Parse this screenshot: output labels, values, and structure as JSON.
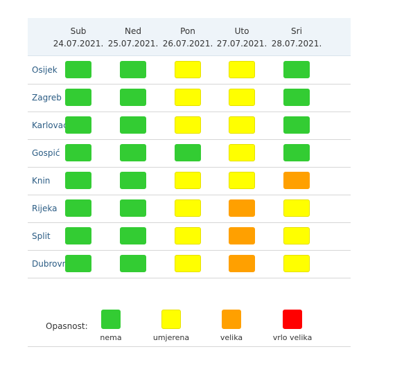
{
  "colors": {
    "nema": "#33cc33",
    "umjerena": "#ffff00",
    "velika": "#ffa000",
    "vrlo_velika": "#ff0000"
  },
  "days": [
    {
      "name": "Sub",
      "date": "24.07.2021."
    },
    {
      "name": "Ned",
      "date": "25.07.2021."
    },
    {
      "name": "Pon",
      "date": "26.07.2021."
    },
    {
      "name": "Uto",
      "date": "27.07.2021."
    },
    {
      "name": "Sri",
      "date": "28.07.2021."
    }
  ],
  "cities": [
    {
      "name": "Osijek",
      "levels": [
        "nema",
        "nema",
        "umjerena",
        "umjerena",
        "nema"
      ]
    },
    {
      "name": "Zagreb",
      "levels": [
        "nema",
        "nema",
        "umjerena",
        "umjerena",
        "nema"
      ]
    },
    {
      "name": "Karlovac",
      "levels": [
        "nema",
        "nema",
        "umjerena",
        "umjerena",
        "nema"
      ]
    },
    {
      "name": "Gospić",
      "levels": [
        "nema",
        "nema",
        "nema",
        "umjerena",
        "nema"
      ]
    },
    {
      "name": "Knin",
      "levels": [
        "nema",
        "nema",
        "umjerena",
        "umjerena",
        "velika"
      ]
    },
    {
      "name": "Rijeka",
      "levels": [
        "nema",
        "nema",
        "umjerena",
        "velika",
        "umjerena"
      ]
    },
    {
      "name": "Split",
      "levels": [
        "nema",
        "nema",
        "umjerena",
        "velika",
        "umjerena"
      ]
    },
    {
      "name": "Dubrovnik",
      "levels": [
        "nema",
        "nema",
        "umjerena",
        "velika",
        "umjerena"
      ]
    }
  ],
  "legend": {
    "title": "Opasnost:",
    "items": [
      {
        "key": "nema",
        "label": "nema"
      },
      {
        "key": "umjerena",
        "label": "umjerena"
      },
      {
        "key": "velika",
        "label": "velika"
      },
      {
        "key": "vrlo_velika",
        "label": "vrlo velika"
      }
    ]
  }
}
